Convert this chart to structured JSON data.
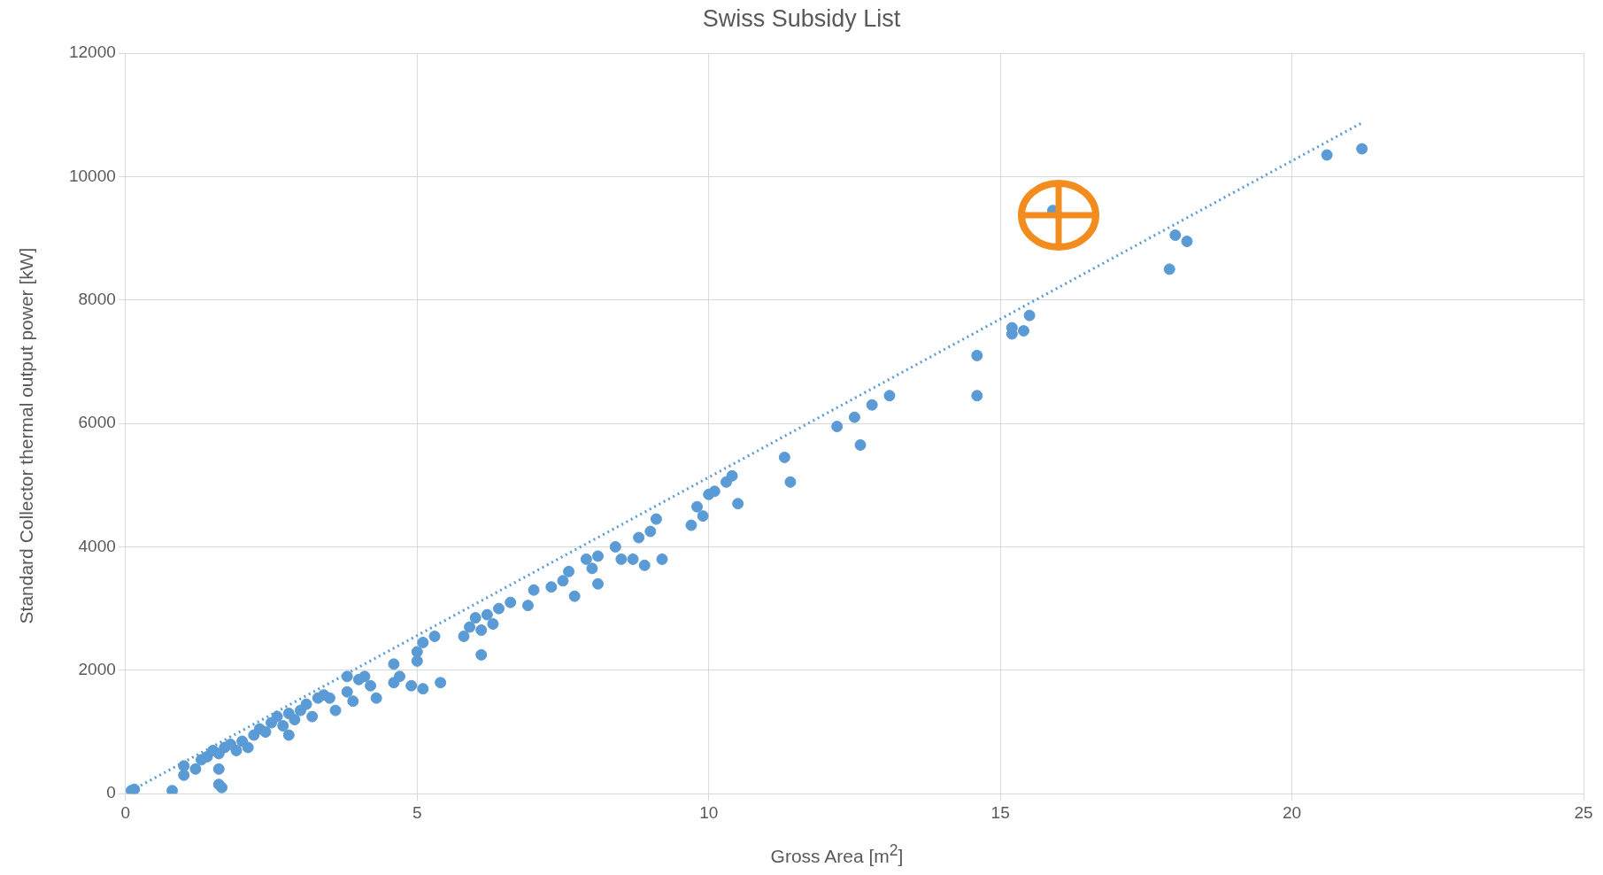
{
  "chart_data": {
    "type": "scatter",
    "title": "Swiss Subsidy List",
    "xlabel": "Gross Area [m$^{2}$]",
    "ylabel": "Standard  Collector thermal output power [kW]",
    "xlim": [
      0,
      25
    ],
    "xticks": [
      0,
      5,
      10,
      15,
      20,
      25
    ],
    "ylim": [
      0,
      12000
    ],
    "yticks": [
      0,
      2000,
      4000,
      6000,
      8000,
      10000,
      12000
    ],
    "grid": true,
    "legend": false,
    "marker": "circle",
    "series": [
      {
        "color": "#5b9bd5",
        "x": [
          0.1,
          0.15,
          0.8,
          1.0,
          1.0,
          1.2,
          1.3,
          1.4,
          1.5,
          1.6,
          1.6,
          1.6,
          1.65,
          1.7,
          1.8,
          1.9,
          2.0,
          2.1,
          2.2,
          2.3,
          2.4,
          2.5,
          2.6,
          2.7,
          2.8,
          2.8,
          2.9,
          3.0,
          3.1,
          3.2,
          3.3,
          3.4,
          3.5,
          3.6,
          3.8,
          3.8,
          3.9,
          4.0,
          4.1,
          4.2,
          4.3,
          4.6,
          4.6,
          4.7,
          4.9,
          5.0,
          5.0,
          5.1,
          5.1,
          5.3,
          5.4,
          5.8,
          5.9,
          6.0,
          6.1,
          6.1,
          6.2,
          6.3,
          6.4,
          6.6,
          6.9,
          7.0,
          7.3,
          7.5,
          7.6,
          7.7,
          7.9,
          8.0,
          8.1,
          8.1,
          8.4,
          8.5,
          8.7,
          8.8,
          8.9,
          9.0,
          9.1,
          9.2,
          9.7,
          9.8,
          9.9,
          10.0,
          10.1,
          10.3,
          10.4,
          10.5,
          11.3,
          11.4,
          12.2,
          12.5,
          12.6,
          12.8,
          13.1,
          14.6,
          14.6,
          15.2,
          15.2,
          15.4,
          15.5,
          15.9,
          17.9,
          18.0,
          18.2,
          20.6,
          21.2
        ],
        "values": [
          50,
          70,
          50,
          300,
          450,
          400,
          550,
          600,
          700,
          650,
          400,
          150,
          100,
          750,
          800,
          700,
          850,
          750,
          950,
          1050,
          1000,
          1150,
          1250,
          1100,
          1300,
          950,
          1200,
          1350,
          1450,
          1250,
          1550,
          1600,
          1550,
          1350,
          1900,
          1650,
          1500,
          1850,
          1900,
          1750,
          1550,
          2100,
          1800,
          1900,
          1750,
          2300,
          2150,
          2450,
          1700,
          2550,
          1800,
          2550,
          2700,
          2850,
          2650,
          2250,
          2900,
          2750,
          3000,
          3100,
          3050,
          3300,
          3350,
          3450,
          3600,
          3200,
          3800,
          3650,
          3850,
          3400,
          4000,
          3800,
          3800,
          4150,
          3700,
          4250,
          4450,
          3800,
          4350,
          4650,
          4500,
          4850,
          4900,
          5050,
          5150,
          4700,
          5450,
          5050,
          5950,
          6100,
          5650,
          6300,
          6450,
          7100,
          6450,
          7450,
          7550,
          7500,
          7750,
          9450,
          8500,
          9050,
          8950,
          10350,
          10450
        ]
      },
      {
        "type": "line",
        "color": "#5b9bd5",
        "line_style": "dotted",
        "marker": "none",
        "x": [
          0.1,
          21.2
        ],
        "values": [
          50,
          10870
        ]
      }
    ]
  }
}
